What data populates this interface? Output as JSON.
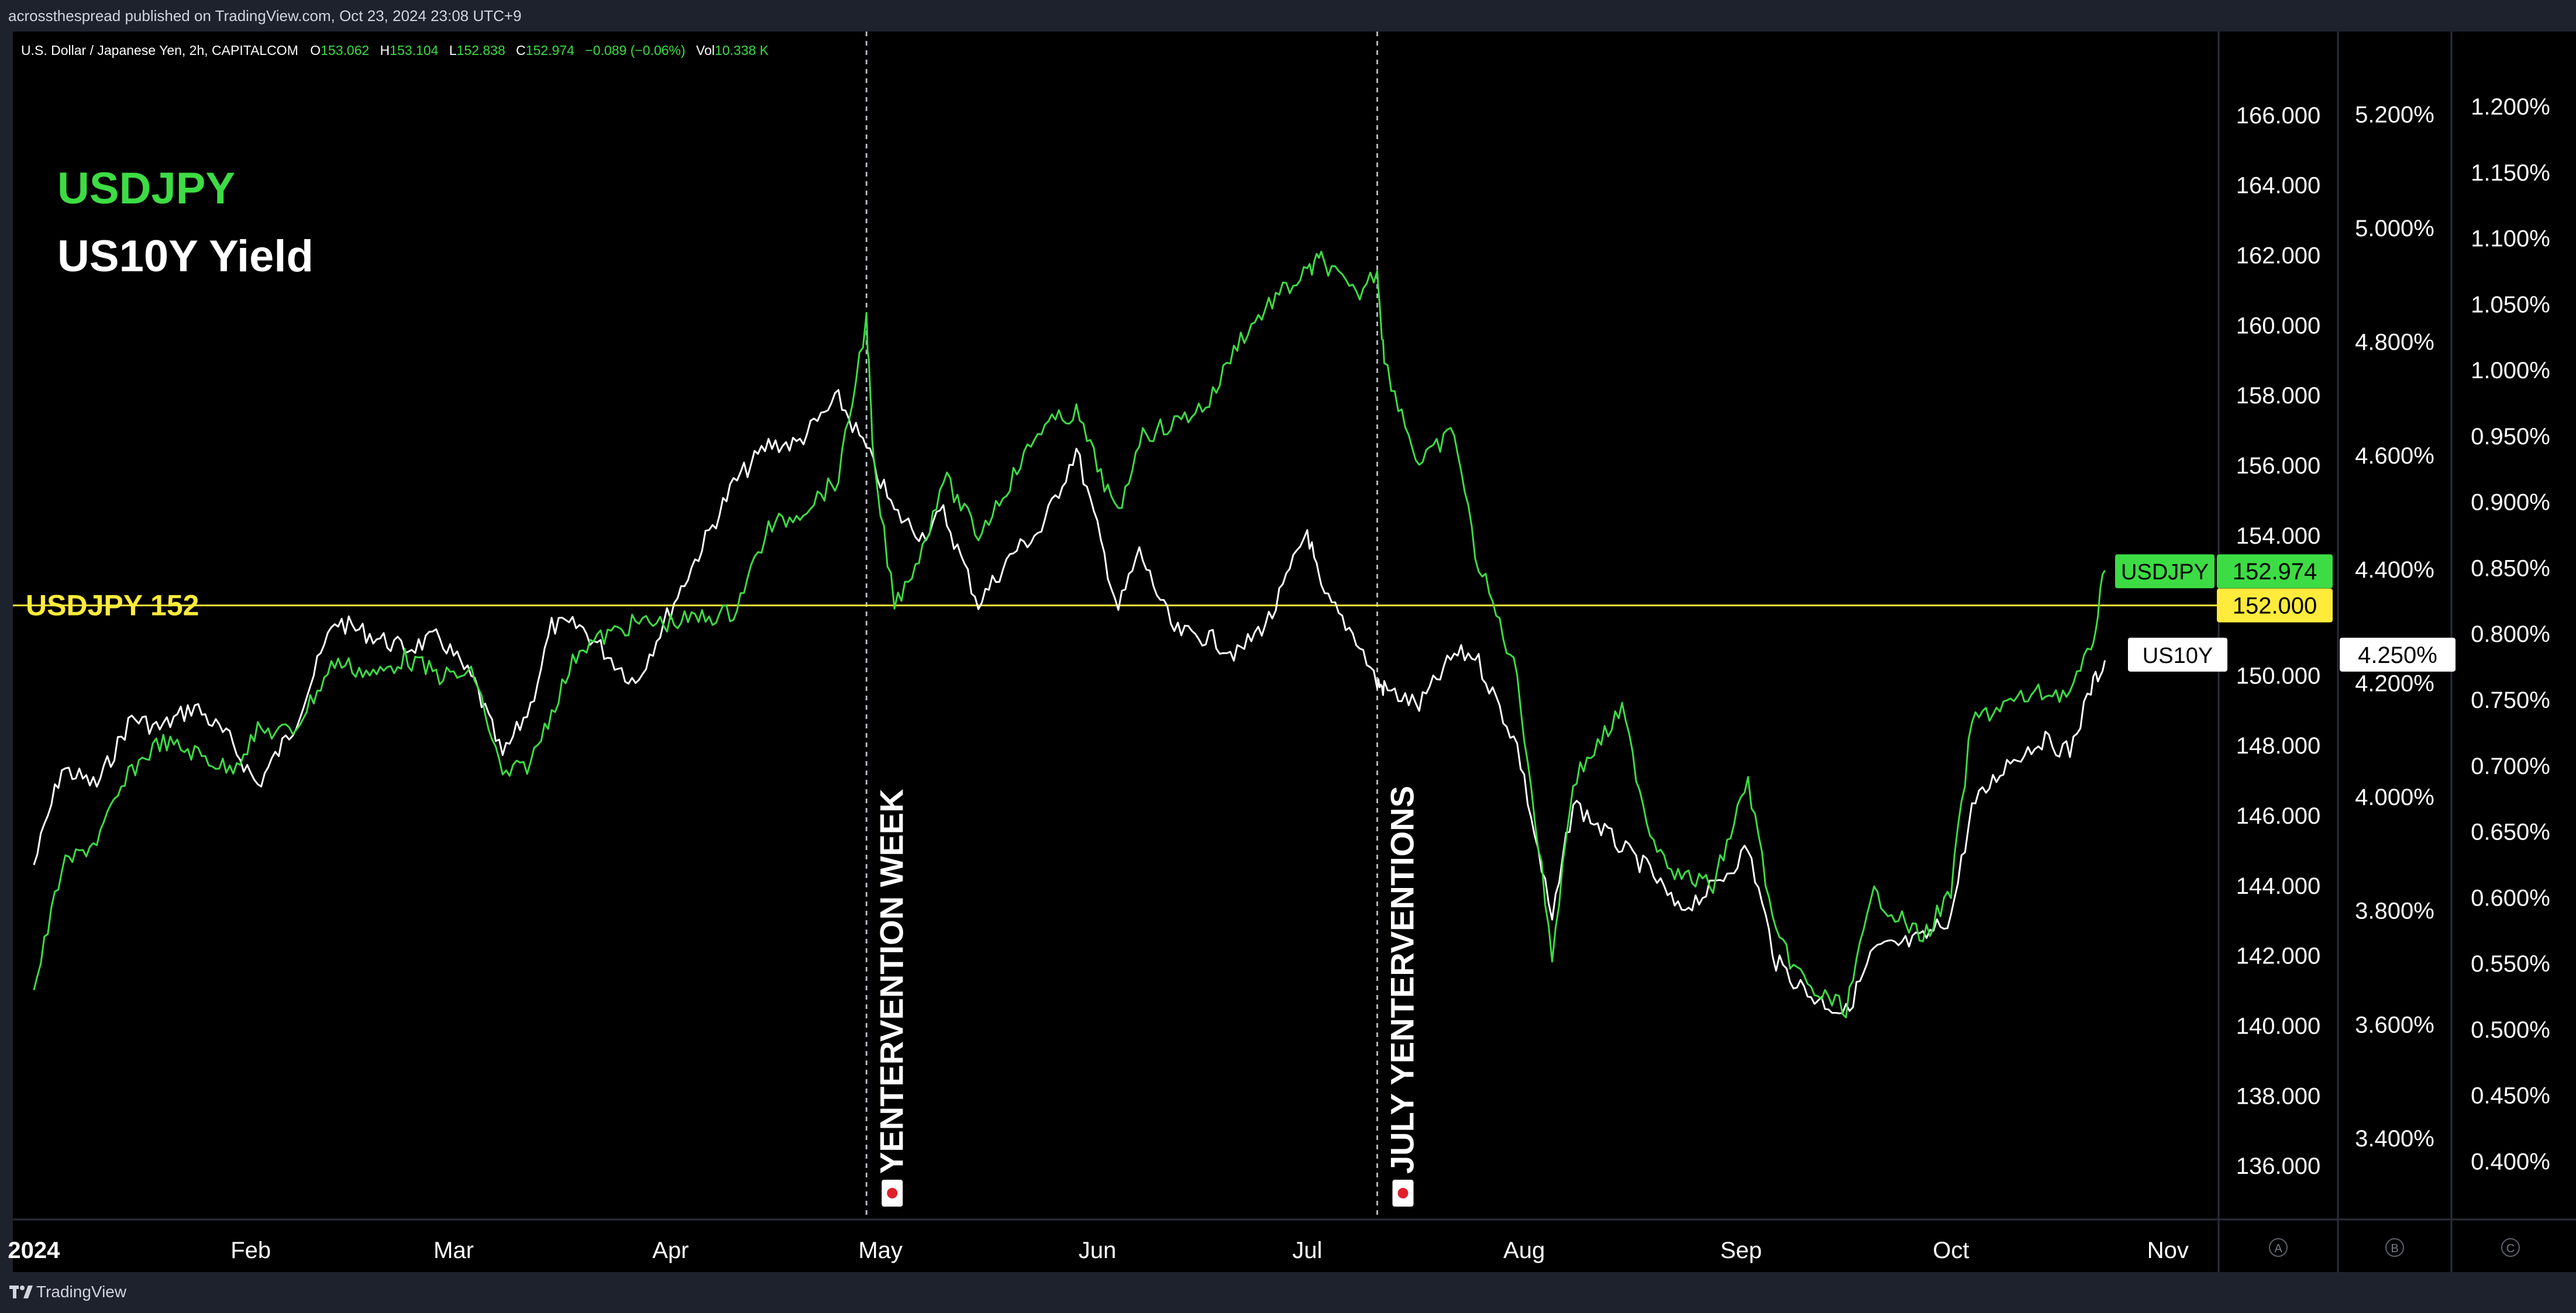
{
  "header": {
    "publisher": "acrossthespread published on TradingView.com, Oct 23, 2024 23:08 UTC+9"
  },
  "legend": {
    "symbol": "U.S. Dollar / Japanese Yen, 2h, CAPITALCOM",
    "o_label": "O",
    "o_value": "153.062",
    "h_label": "H",
    "h_value": "153.104",
    "l_label": "L",
    "l_value": "152.838",
    "c_label": "C",
    "c_value": "152.974",
    "change": "−0.089 (−0.06%)",
    "vol_label": "Vol",
    "vol_value": "10.338 K"
  },
  "footer": {
    "brand": "TradingView"
  },
  "colors": {
    "usdjpy": "#3ddc44",
    "us10y": "#ffffff",
    "level": "#ffeb3b",
    "background": "#000000",
    "panel": "#1e222d"
  },
  "chart_data": {
    "type": "line",
    "title_lines": [
      "USDJPY",
      "US10Y Yield"
    ],
    "x_ticks": [
      "2024",
      "Feb",
      "Mar",
      "Apr",
      "May",
      "Jun",
      "Jul",
      "Aug",
      "Sep",
      "Oct",
      "Nov"
    ],
    "x_tick_dates": [
      "2024-01-01",
      "2024-02-01",
      "2024-03-01",
      "2024-04-01",
      "2024-05-01",
      "2024-06-01",
      "2024-07-01",
      "2024-08-01",
      "2024-09-01",
      "2024-10-01",
      "2024-11-01"
    ],
    "x_range": [
      "2023-12-29",
      "2024-11-08"
    ],
    "axes": {
      "A": {
        "ticks": [
          "166.000",
          "164.000",
          "162.000",
          "160.000",
          "158.000",
          "156.000",
          "154.000",
          "152.000",
          "150.000",
          "148.000",
          "146.000",
          "144.000",
          "142.000",
          "140.000",
          "138.000",
          "136.000"
        ],
        "range": [
          135,
          167
        ],
        "id_label": "A"
      },
      "B": {
        "ticks": [
          "5.200%",
          "5.000%",
          "4.800%",
          "4.600%",
          "4.400%",
          "4.200%",
          "4.000%",
          "3.800%",
          "3.600%",
          "3.400%"
        ],
        "range": [
          3.29,
          5.26
        ],
        "id_label": "B"
      },
      "C": {
        "ticks": [
          "1.200%",
          "1.150%",
          "1.100%",
          "1.050%",
          "1.000%",
          "0.950%",
          "0.900%",
          "0.850%",
          "0.800%",
          "0.750%",
          "0.700%",
          "0.650%",
          "0.600%",
          "0.550%",
          "0.500%",
          "0.450%",
          "0.400%"
        ],
        "range": [
          0.37,
          1.22
        ],
        "id_label": "C"
      }
    },
    "series": [
      {
        "name": "USDJPY",
        "axis": "A",
        "points": [
          [
            "2024-01-01",
            141.0
          ],
          [
            "2024-01-05",
            144.5
          ],
          [
            "2024-01-10",
            145.3
          ],
          [
            "2024-01-15",
            147.3
          ],
          [
            "2024-01-19",
            148.1
          ],
          [
            "2024-01-24",
            147.8
          ],
          [
            "2024-01-29",
            147.3
          ],
          [
            "2024-02-02",
            148.4
          ],
          [
            "2024-02-07",
            148.4
          ],
          [
            "2024-02-13",
            150.4
          ],
          [
            "2024-02-19",
            150.0
          ],
          [
            "2024-02-23",
            150.5
          ],
          [
            "2024-02-28",
            150.0
          ],
          [
            "2024-03-04",
            150.0
          ],
          [
            "2024-03-08",
            147.1
          ],
          [
            "2024-03-12",
            147.5
          ],
          [
            "2024-03-15",
            149.0
          ],
          [
            "2024-03-19",
            150.8
          ],
          [
            "2024-03-27",
            151.5
          ],
          [
            "2024-04-01",
            151.5
          ],
          [
            "2024-04-10",
            151.8
          ],
          [
            "2024-04-15",
            154.2
          ],
          [
            "2024-04-19",
            154.6
          ],
          [
            "2024-04-25",
            155.6
          ],
          [
            "2024-04-29",
            160.2
          ],
          [
            "2024-04-30",
            156.0
          ],
          [
            "2024-05-03",
            152.0
          ],
          [
            "2024-05-07",
            153.6
          ],
          [
            "2024-05-10",
            155.7
          ],
          [
            "2024-05-15",
            154.0
          ],
          [
            "2024-05-20",
            155.7
          ],
          [
            "2024-05-24",
            157.1
          ],
          [
            "2024-05-29",
            157.5
          ],
          [
            "2024-06-04",
            154.5
          ],
          [
            "2024-06-07",
            156.8
          ],
          [
            "2024-06-12",
            157.2
          ],
          [
            "2024-06-17",
            157.8
          ],
          [
            "2024-06-21",
            159.5
          ],
          [
            "2024-06-26",
            160.7
          ],
          [
            "2024-07-01",
            161.5
          ],
          [
            "2024-07-03",
            161.9
          ],
          [
            "2024-07-08",
            160.8
          ],
          [
            "2024-07-11",
            161.6
          ],
          [
            "2024-07-12",
            159.0
          ],
          [
            "2024-07-17",
            156.0
          ],
          [
            "2024-07-22",
            157.0
          ],
          [
            "2024-07-25",
            153.5
          ],
          [
            "2024-07-31",
            150.0
          ],
          [
            "2024-08-05",
            142.0
          ],
          [
            "2024-08-08",
            147.0
          ],
          [
            "2024-08-15",
            149.0
          ],
          [
            "2024-08-19",
            145.5
          ],
          [
            "2024-08-23",
            144.3
          ],
          [
            "2024-08-28",
            144.0
          ],
          [
            "2024-09-02",
            147.0
          ],
          [
            "2024-09-06",
            142.5
          ],
          [
            "2024-09-11",
            141.0
          ],
          [
            "2024-09-16",
            140.5
          ],
          [
            "2024-09-20",
            143.8
          ],
          [
            "2024-09-24",
            143.0
          ],
          [
            "2024-09-27",
            142.5
          ],
          [
            "2024-10-01",
            143.8
          ],
          [
            "2024-10-04",
            148.7
          ],
          [
            "2024-10-09",
            149.2
          ],
          [
            "2024-10-14",
            149.5
          ],
          [
            "2024-10-18",
            149.5
          ],
          [
            "2024-10-21",
            150.7
          ],
          [
            "2024-10-23",
            153.0
          ]
        ]
      },
      {
        "name": "US10Y",
        "axis": "B",
        "points": [
          [
            "2024-01-01",
            3.88
          ],
          [
            "2024-01-05",
            4.05
          ],
          [
            "2024-01-10",
            4.02
          ],
          [
            "2024-01-15",
            4.14
          ],
          [
            "2024-01-19",
            4.12
          ],
          [
            "2024-01-24",
            4.16
          ],
          [
            "2024-01-29",
            4.1
          ],
          [
            "2024-02-02",
            4.02
          ],
          [
            "2024-02-07",
            4.12
          ],
          [
            "2024-02-13",
            4.31
          ],
          [
            "2024-02-19",
            4.28
          ],
          [
            "2024-02-23",
            4.26
          ],
          [
            "2024-02-28",
            4.28
          ],
          [
            "2024-03-04",
            4.2
          ],
          [
            "2024-03-08",
            4.07
          ],
          [
            "2024-03-12",
            4.16
          ],
          [
            "2024-03-15",
            4.3
          ],
          [
            "2024-03-19",
            4.3
          ],
          [
            "2024-03-27",
            4.2
          ],
          [
            "2024-04-01",
            4.33
          ],
          [
            "2024-04-10",
            4.55
          ],
          [
            "2024-04-15",
            4.62
          ],
          [
            "2024-04-19",
            4.62
          ],
          [
            "2024-04-25",
            4.7
          ],
          [
            "2024-04-29",
            4.61
          ],
          [
            "2024-05-03",
            4.5
          ],
          [
            "2024-05-07",
            4.46
          ],
          [
            "2024-05-10",
            4.5
          ],
          [
            "2024-05-15",
            4.34
          ],
          [
            "2024-05-20",
            4.43
          ],
          [
            "2024-05-24",
            4.47
          ],
          [
            "2024-05-29",
            4.61
          ],
          [
            "2024-06-04",
            4.33
          ],
          [
            "2024-06-07",
            4.43
          ],
          [
            "2024-06-12",
            4.29
          ],
          [
            "2024-06-17",
            4.28
          ],
          [
            "2024-06-21",
            4.25
          ],
          [
            "2024-06-26",
            4.32
          ],
          [
            "2024-07-01",
            4.47
          ],
          [
            "2024-07-03",
            4.36
          ],
          [
            "2024-07-08",
            4.28
          ],
          [
            "2024-07-11",
            4.2
          ],
          [
            "2024-07-12",
            4.19
          ],
          [
            "2024-07-17",
            4.16
          ],
          [
            "2024-07-22",
            4.25
          ],
          [
            "2024-07-25",
            4.25
          ],
          [
            "2024-07-31",
            4.09
          ],
          [
            "2024-08-05",
            3.78
          ],
          [
            "2024-08-08",
            3.99
          ],
          [
            "2024-08-15",
            3.91
          ],
          [
            "2024-08-19",
            3.87
          ],
          [
            "2024-08-23",
            3.8
          ],
          [
            "2024-08-28",
            3.84
          ],
          [
            "2024-09-02",
            3.91
          ],
          [
            "2024-09-06",
            3.71
          ],
          [
            "2024-09-11",
            3.65
          ],
          [
            "2024-09-16",
            3.62
          ],
          [
            "2024-09-20",
            3.73
          ],
          [
            "2024-09-24",
            3.74
          ],
          [
            "2024-09-27",
            3.75
          ],
          [
            "2024-10-01",
            3.79
          ],
          [
            "2024-10-04",
            3.98
          ],
          [
            "2024-10-09",
            4.06
          ],
          [
            "2024-10-14",
            4.1
          ],
          [
            "2024-10-18",
            4.08
          ],
          [
            "2024-10-21",
            4.19
          ],
          [
            "2024-10-23",
            4.24
          ]
        ]
      }
    ],
    "horizontal_line": {
      "label": "USDJPY 152",
      "value": 152.0,
      "axis": "A"
    },
    "vertical_lines": [
      {
        "date": "2024-04-29",
        "label": "YENTERVENTION WEEK"
      },
      {
        "date": "2024-07-11",
        "label": "JULY YENTERVENTIONS"
      }
    ],
    "price_tags": [
      {
        "series_label": "USDJPY",
        "value_label": "152.974",
        "value": 152.974,
        "axis": "A"
      },
      {
        "series_label": "",
        "value_label": "152.000",
        "value": 152.0,
        "axis": "A"
      },
      {
        "series_label": "US10Y",
        "value_label": "4.250%",
        "value": 4.25,
        "axis": "B"
      }
    ],
    "grid": false,
    "legend": "top-left"
  }
}
